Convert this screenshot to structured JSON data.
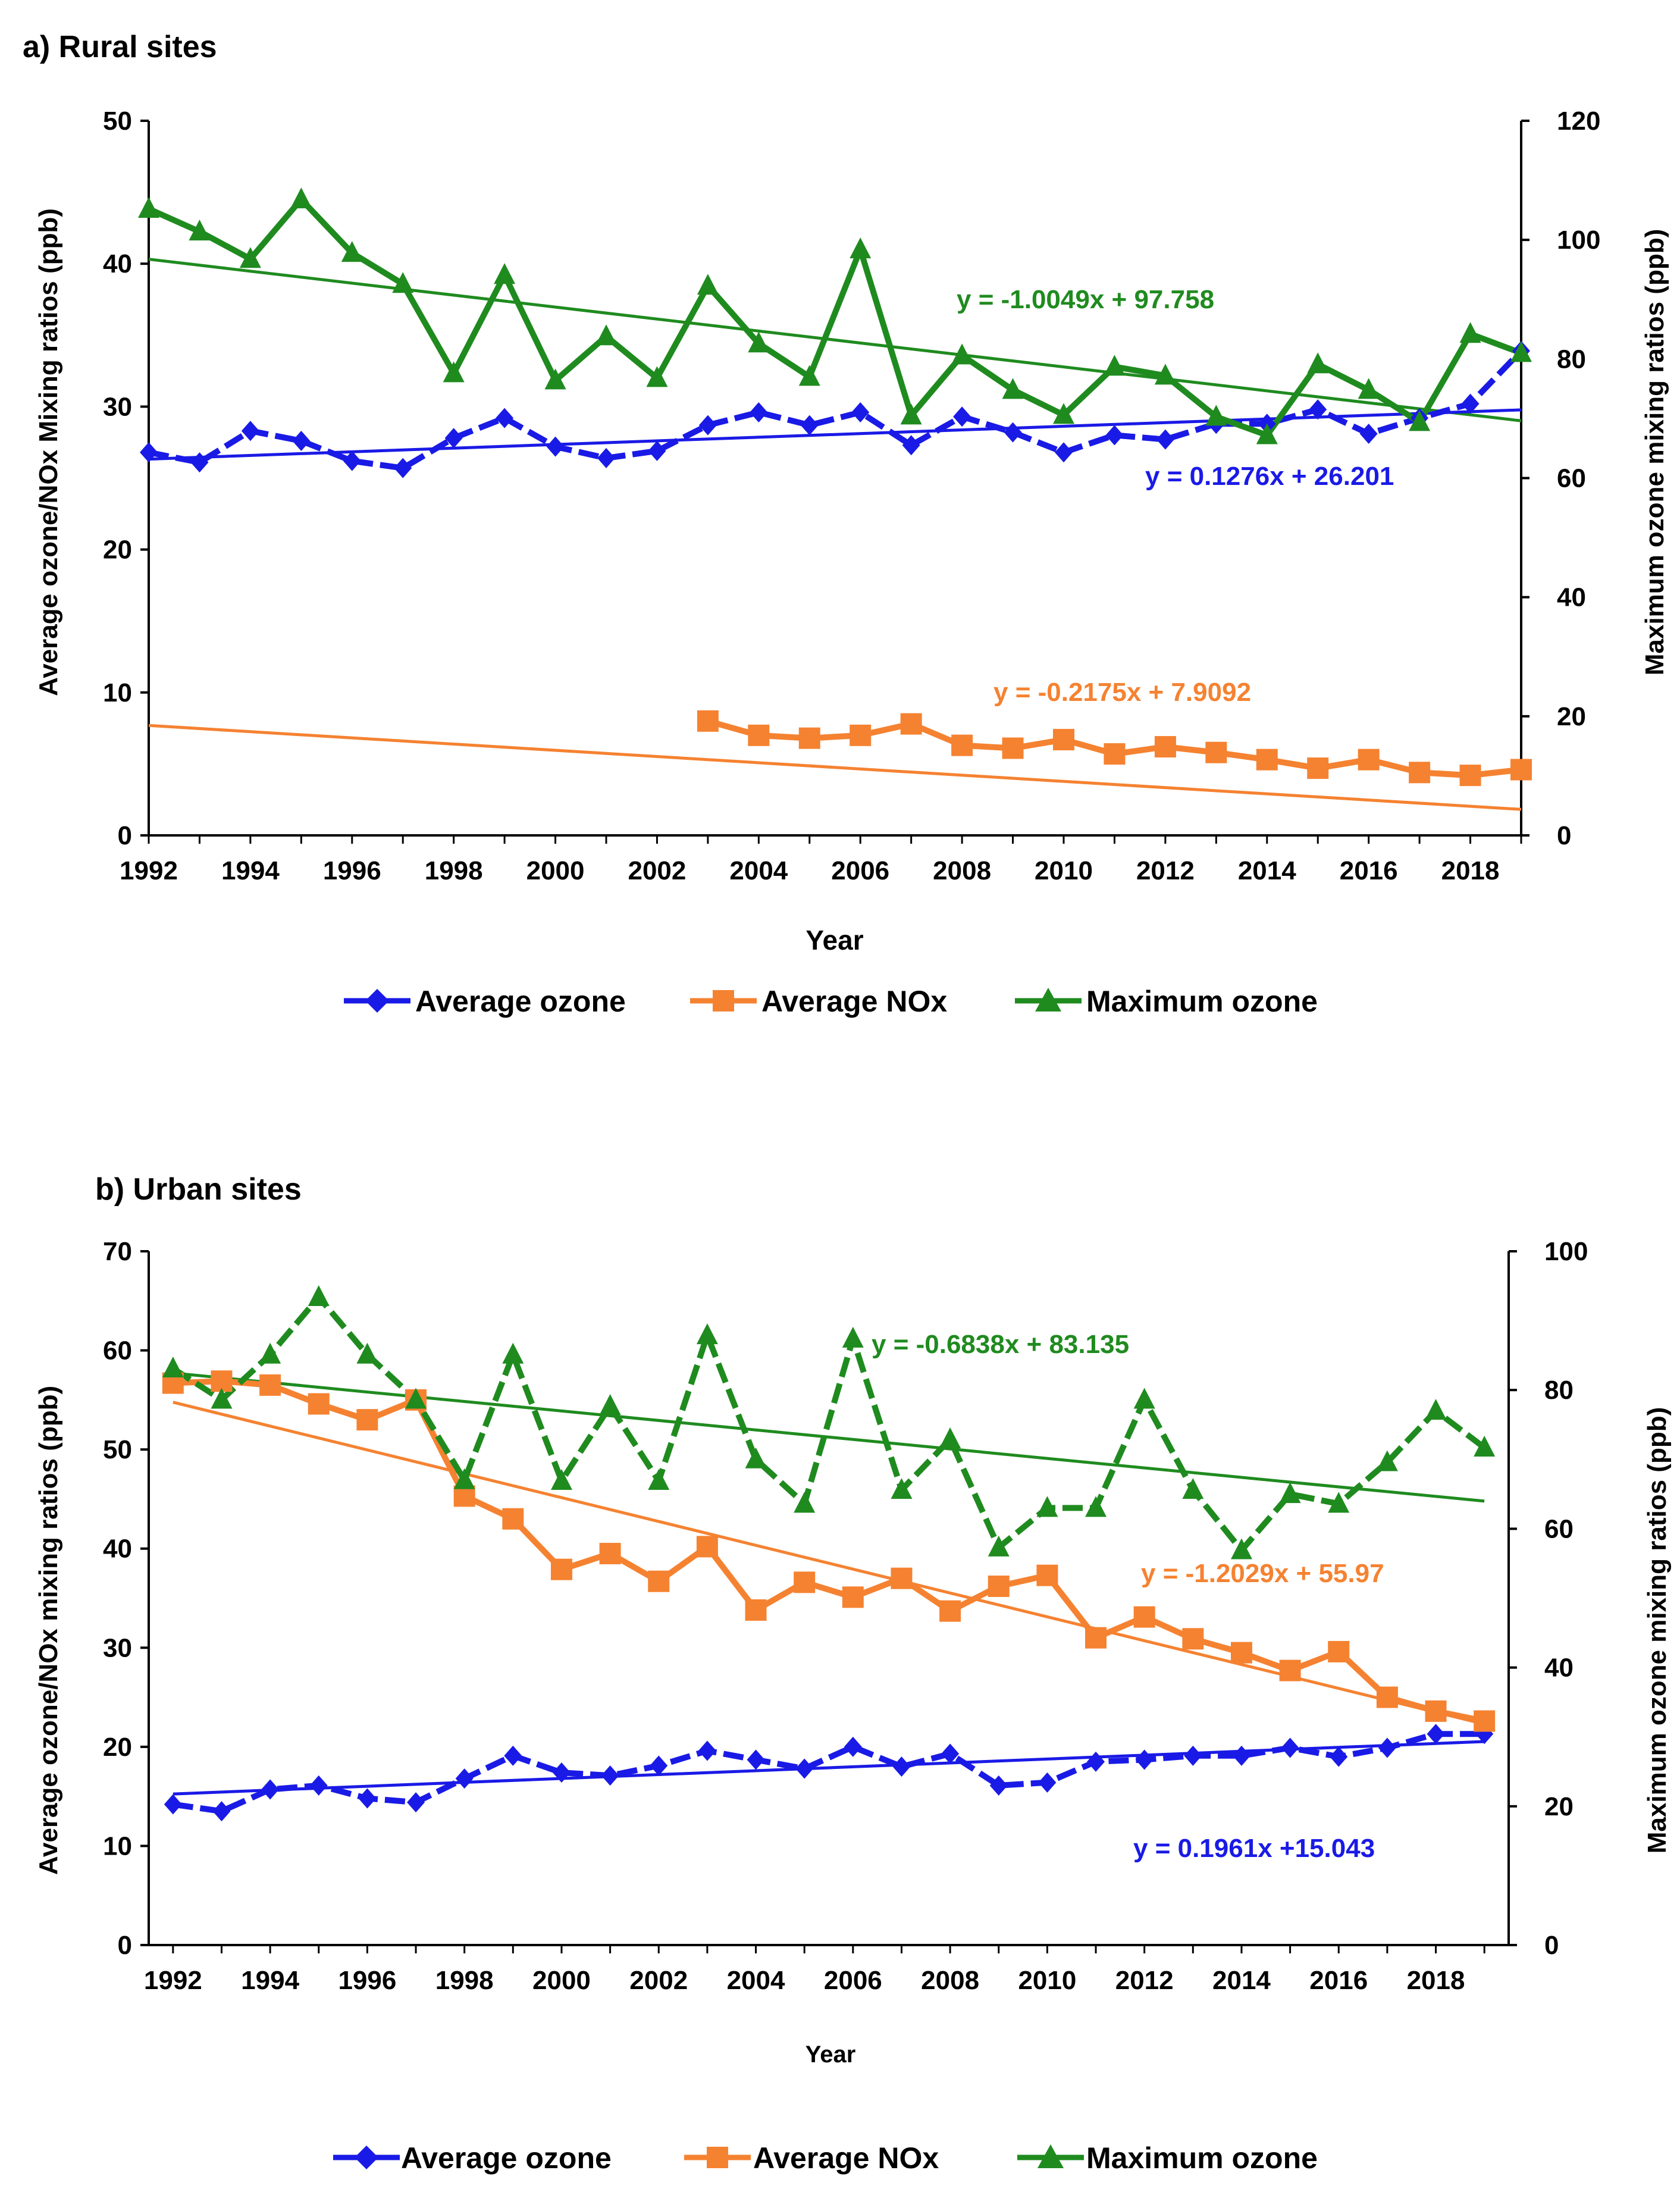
{
  "colors": {
    "ozone": "#1a1ae6",
    "nox": "#f58231",
    "max": "#1f8b1f",
    "axis": "#000000"
  },
  "legend_labels": [
    "Average ozone",
    "Average NOx",
    "Maximum ozone"
  ],
  "chart_data": [
    {
      "type": "line",
      "title": "a) Rural sites",
      "xlabel": "Year",
      "ylabel_left": "Average ozone/NOx Mixing ratios (ppb)",
      "ylabel_right": "Maximum ozone mixing ratios (ppb)",
      "xlim": [
        1992,
        2019
      ],
      "ylim_left": [
        0,
        50
      ],
      "ylim_right": [
        0,
        120
      ],
      "x_ticks": [
        "1992",
        "1994",
        "1996",
        "1998",
        "2000",
        "2002",
        "2004",
        "2006",
        "2008",
        "2010",
        "2012",
        "2014",
        "2016",
        "2018"
      ],
      "y_ticks_left": [
        "0",
        "10",
        "20",
        "30",
        "40",
        "50"
      ],
      "y_ticks_right": [
        "0",
        "20",
        "40",
        "60",
        "80",
        "100",
        "120"
      ],
      "series": [
        {
          "name": "Average ozone",
          "axis": "left",
          "x": [
            1992,
            1993,
            1994,
            1995,
            1996,
            1997,
            1998,
            1999,
            2000,
            2001,
            2002,
            2003,
            2004,
            2005,
            2006,
            2007,
            2008,
            2009,
            2010,
            2011,
            2012,
            2013,
            2014,
            2015,
            2016,
            2017,
            2018,
            2019
          ],
          "values": [
            26.8,
            26.1,
            28.3,
            27.6,
            26.2,
            25.7,
            27.8,
            29.2,
            27.2,
            26.4,
            26.9,
            28.7,
            29.6,
            28.7,
            29.6,
            27.3,
            29.3,
            28.2,
            26.8,
            28.0,
            27.7,
            28.8,
            28.8,
            29.8,
            28.1,
            29.2,
            30.2,
            33.9
          ]
        },
        {
          "name": "Average NOx",
          "axis": "left",
          "x": [
            2003,
            2004,
            2005,
            2006,
            2007,
            2008,
            2009,
            2010,
            2011,
            2012,
            2013,
            2014,
            2015,
            2016,
            2017,
            2018,
            2019
          ],
          "values": [
            8.0,
            7.0,
            6.8,
            7.0,
            7.8,
            6.3,
            6.1,
            6.7,
            5.7,
            6.2,
            5.8,
            5.3,
            4.7,
            5.3,
            4.4,
            4.2,
            4.6
          ]
        },
        {
          "name": "Maximum ozone",
          "axis": "right",
          "x": [
            1992,
            1993,
            1994,
            1995,
            1996,
            1997,
            1998,
            1999,
            2000,
            2001,
            2002,
            2003,
            2004,
            2005,
            2006,
            2007,
            2008,
            2009,
            2010,
            2011,
            2012,
            2013,
            2014,
            2015,
            2016,
            2017,
            2018,
            2019
          ],
          "values": [
            105.2,
            101.4,
            96.8,
            106.8,
            97.8,
            92.6,
            77.6,
            94.1,
            76.4,
            83.8,
            76.8,
            92.3,
            82.6,
            77.0,
            98.4,
            70.5,
            80.6,
            74.8,
            70.6,
            78.7,
            77.2,
            70.3,
            67.2,
            79.1,
            74.8,
            69.4,
            84.2,
            81.0
          ]
        }
      ],
      "trendlines": [
        {
          "series": "Maximum ozone",
          "axis": "right",
          "slope": -1.0049,
          "intercept": 97.758,
          "label": "y = -1.0049x + 97.758"
        },
        {
          "series": "Average ozone",
          "axis": "left",
          "slope": 0.1276,
          "intercept": 26.201,
          "label": "y = 0.1276x + 26.201"
        },
        {
          "series": "Average NOx",
          "axis": "left",
          "slope": -0.2175,
          "intercept": 7.9092,
          "label": "y = -0.2175x + 7.9092"
        }
      ]
    },
    {
      "type": "line",
      "title": "b) Urban sites",
      "xlabel": "Year",
      "ylabel_left": "Average ozone/NOx mixing ratios  (ppb)",
      "ylabel_right": "Maximum ozone mixing ratios (ppb)",
      "xlim": [
        1991.5,
        2019.5
      ],
      "ylim_left": [
        0,
        70
      ],
      "ylim_right": [
        0,
        100
      ],
      "x_ticks": [
        "1992",
        "1994",
        "1996",
        "1998",
        "2000",
        "2002",
        "2004",
        "2006",
        "2008",
        "2010",
        "2012",
        "2014",
        "2016",
        "2018"
      ],
      "y_ticks_left": [
        "0",
        "10",
        "20",
        "30",
        "40",
        "50",
        "60",
        "70"
      ],
      "y_ticks_right": [
        "0",
        "20",
        "40",
        "60",
        "80",
        "100"
      ],
      "series": [
        {
          "name": "Average ozone",
          "axis": "left",
          "x": [
            1992,
            1993,
            1994,
            1995,
            1996,
            1997,
            1998,
            1999,
            2000,
            2001,
            2002,
            2003,
            2004,
            2005,
            2006,
            2007,
            2008,
            2009,
            2010,
            2011,
            2012,
            2013,
            2014,
            2015,
            2016,
            2017,
            2018,
            2019
          ],
          "values": [
            14.2,
            13.5,
            15.7,
            16.1,
            14.8,
            14.4,
            16.8,
            19.1,
            17.4,
            17.1,
            18.1,
            19.6,
            18.7,
            17.8,
            20.0,
            18.0,
            19.3,
            16.1,
            16.4,
            18.5,
            18.7,
            19.1,
            19.1,
            19.9,
            19.0,
            19.9,
            21.3,
            21.3
          ]
        },
        {
          "name": "Average NOx",
          "axis": "left",
          "x": [
            1992,
            1993,
            1994,
            1995,
            1996,
            1997,
            1998,
            1999,
            2000,
            2001,
            2002,
            2003,
            2004,
            2005,
            2006,
            2007,
            2008,
            2009,
            2010,
            2011,
            2012,
            2013,
            2014,
            2015,
            2016,
            2017,
            2018,
            2019
          ],
          "values": [
            56.7,
            56.9,
            56.5,
            54.6,
            53.0,
            55.0,
            45.3,
            43.0,
            37.9,
            39.5,
            36.7,
            40.2,
            33.8,
            36.6,
            35.1,
            37.0,
            33.7,
            36.2,
            37.3,
            31.0,
            33.1,
            30.9,
            29.5,
            27.7,
            29.6,
            25.0,
            23.6,
            22.6
          ]
        },
        {
          "name": "Maximum ozone",
          "axis": "right",
          "x": [
            1992,
            1993,
            1994,
            1995,
            1996,
            1997,
            1998,
            1999,
            2000,
            2001,
            2002,
            2003,
            2004,
            2005,
            2006,
            2007,
            2008,
            2009,
            2010,
            2011,
            2012,
            2013,
            2014,
            2015,
            2016,
            2017,
            2018,
            2019
          ],
          "values": [
            83.1,
            78.6,
            85.1,
            93.4,
            85.1,
            78.6,
            67.0,
            85.1,
            66.9,
            77.7,
            66.9,
            87.9,
            70.0,
            63.6,
            87.4,
            65.6,
            72.9,
            57.3,
            63.0,
            63.0,
            78.6,
            65.6,
            56.9,
            65.0,
            63.6,
            69.6,
            77.0,
            71.7
          ]
        }
      ],
      "trendlines": [
        {
          "series": "Maximum ozone",
          "axis": "right",
          "slope": -0.6838,
          "intercept": 83.135,
          "label": "y = -0.6838x + 83.135"
        },
        {
          "series": "Average NOx",
          "axis": "left",
          "slope": -1.2029,
          "intercept": 55.97,
          "label": "y = -1.2029x + 55.97"
        },
        {
          "series": "Average ozone",
          "axis": "left",
          "slope": 0.1961,
          "intercept": 15.043,
          "label": "y = 0.1961x +15.043"
        }
      ]
    }
  ]
}
